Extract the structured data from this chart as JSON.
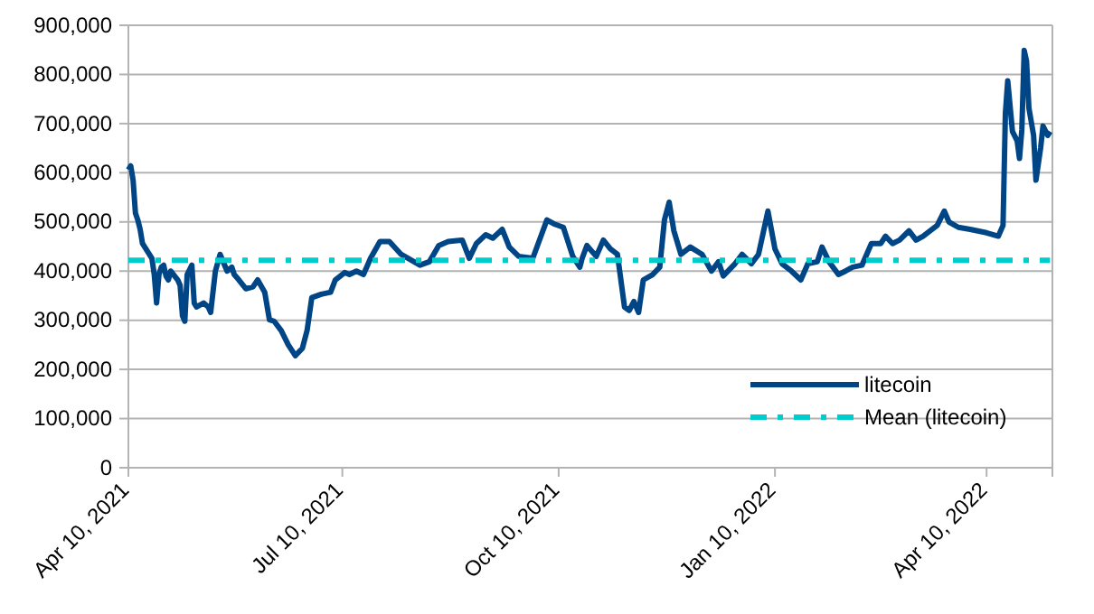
{
  "chart_data": {
    "type": "line",
    "xlim": [
      "2021-04-10",
      "2022-05-08"
    ],
    "ylim": [
      0,
      900000
    ],
    "yticks": [
      {
        "value": 0,
        "label": "0"
      },
      {
        "value": 100000,
        "label": "100,000"
      },
      {
        "value": 200000,
        "label": "200,000"
      },
      {
        "value": 300000,
        "label": "300,000"
      },
      {
        "value": 400000,
        "label": "400,000"
      },
      {
        "value": 500000,
        "label": "500,000"
      },
      {
        "value": 600000,
        "label": "600,000"
      },
      {
        "value": 700000,
        "label": "700,000"
      },
      {
        "value": 800000,
        "label": "800,000"
      },
      {
        "value": 900000,
        "label": "900,000"
      }
    ],
    "xticks": [
      {
        "value": "2021-04-10",
        "label": "Apr 10, 2021"
      },
      {
        "value": "2021-07-10",
        "label": "Jul 10, 2021"
      },
      {
        "value": "2021-10-10",
        "label": "Oct 10, 2021"
      },
      {
        "value": "2022-01-10",
        "label": "Jan 10, 2022"
      },
      {
        "value": "2022-04-10",
        "label": "Apr 10, 2022"
      }
    ],
    "grid": "y",
    "legend": "bottom right",
    "series": [
      {
        "name": "litecoin",
        "color": "#004586",
        "line_style": "solid",
        "x": [
          "2021-04-10",
          "2021-04-11",
          "2021-04-12",
          "2021-04-13",
          "2021-04-14",
          "2021-04-15",
          "2021-04-16",
          "2021-04-18",
          "2021-04-20",
          "2021-04-21",
          "2021-04-22",
          "2021-04-23",
          "2021-04-24",
          "2021-04-25",
          "2021-04-26",
          "2021-04-27",
          "2021-04-28",
          "2021-05-01",
          "2021-05-02",
          "2021-05-03",
          "2021-05-04",
          "2021-05-05",
          "2021-05-07",
          "2021-05-08",
          "2021-05-09",
          "2021-05-12",
          "2021-05-14",
          "2021-05-15",
          "2021-05-17",
          "2021-05-19",
          "2021-05-22",
          "2021-05-24",
          "2021-05-25",
          "2021-05-27",
          "2021-05-30",
          "2021-06-02",
          "2021-06-04",
          "2021-06-07",
          "2021-06-09",
          "2021-06-11",
          "2021-06-14",
          "2021-06-17",
          "2021-06-20",
          "2021-06-23",
          "2021-06-25",
          "2021-06-27",
          "2021-07-01",
          "2021-07-05",
          "2021-07-07",
          "2021-07-11",
          "2021-07-13",
          "2021-07-16",
          "2021-07-19",
          "2021-07-22",
          "2021-07-26",
          "2021-07-30",
          "2021-08-04",
          "2021-08-07",
          "2021-08-12",
          "2021-08-16",
          "2021-08-20",
          "2021-08-24",
          "2021-08-30",
          "2021-09-02",
          "2021-09-05",
          "2021-09-09",
          "2021-09-12",
          "2021-09-16",
          "2021-09-19",
          "2021-09-23",
          "2021-09-29",
          "2021-10-05",
          "2021-10-08",
          "2021-10-12",
          "2021-10-16",
          "2021-10-19",
          "2021-10-20",
          "2021-10-22",
          "2021-10-26",
          "2021-10-29",
          "2021-11-01",
          "2021-11-04",
          "2021-11-07",
          "2021-11-09",
          "2021-11-11",
          "2021-11-13",
          "2021-11-15",
          "2021-11-19",
          "2021-11-22",
          "2021-11-24",
          "2021-11-26",
          "2021-11-28",
          "2021-12-01",
          "2021-12-05",
          "2021-12-10",
          "2021-12-14",
          "2021-12-17",
          "2021-12-19",
          "2021-12-24",
          "2021-12-27",
          "2021-12-31",
          "2022-01-03",
          "2022-01-07",
          "2022-01-10",
          "2022-01-13",
          "2022-01-17",
          "2022-01-21",
          "2022-01-24",
          "2022-01-28",
          "2022-01-30",
          "2022-02-02",
          "2022-02-06",
          "2022-02-09",
          "2022-02-12",
          "2022-02-16",
          "2022-02-20",
          "2022-02-24",
          "2022-02-26",
          "2022-03-01",
          "2022-03-04",
          "2022-03-08",
          "2022-03-11",
          "2022-03-14",
          "2022-03-20",
          "2022-03-23",
          "2022-03-25",
          "2022-03-29",
          "2022-04-03",
          "2022-04-10",
          "2022-04-15",
          "2022-04-17",
          "2022-04-18",
          "2022-04-19",
          "2022-04-21",
          "2022-04-23",
          "2022-04-24",
          "2022-04-25",
          "2022-04-26",
          "2022-04-27",
          "2022-04-28",
          "2022-04-30",
          "2022-05-01",
          "2022-05-03",
          "2022-05-04",
          "2022-05-06",
          "2022-05-07"
        ],
        "values": [
          606000,
          614000,
          585000,
          518000,
          504000,
          485000,
          456000,
          441000,
          426000,
          393000,
          335000,
          393000,
          408000,
          412000,
          390000,
          382000,
          400000,
          382000,
          371000,
          309000,
          298000,
          393000,
          412000,
          335000,
          327000,
          335000,
          327000,
          316000,
          400000,
          434000,
          400000,
          408000,
          393000,
          382000,
          364000,
          368000,
          382000,
          357000,
          301000,
          298000,
          279000,
          250000,
          228000,
          243000,
          279000,
          346000,
          353000,
          357000,
          382000,
          397000,
          393000,
          400000,
          393000,
          426000,
          460000,
          460000,
          434000,
          426000,
          412000,
          419000,
          452000,
          460000,
          463000,
          426000,
          456000,
          474000,
          467000,
          485000,
          449000,
          430000,
          426000,
          504000,
          496000,
          489000,
          430000,
          408000,
          426000,
          452000,
          430000,
          463000,
          445000,
          434000,
          327000,
          320000,
          338000,
          316000,
          382000,
          393000,
          408000,
          504000,
          540000,
          482000,
          434000,
          449000,
          434000,
          400000,
          419000,
          390000,
          415000,
          434000,
          415000,
          434000,
          522000,
          445000,
          415000,
          400000,
          382000,
          415000,
          419000,
          449000,
          419000,
          393000,
          400000,
          408000,
          412000,
          456000,
          456000,
          471000,
          456000,
          463000,
          482000,
          463000,
          471000,
          493000,
          522000,
          500000,
          489000,
          485000,
          478000,
          471000,
          493000,
          721000,
          787000,
          684000,
          665000,
          629000,
          688000,
          849000,
          827000,
          732000,
          676000,
          585000,
          651000,
          695000,
          676000,
          684000
        ]
      },
      {
        "name": "Mean (litecoin)",
        "color": "#00cccc",
        "line_style": "dashed",
        "x": [
          "2021-04-10",
          "2022-05-07"
        ],
        "values": [
          422000,
          422000
        ]
      }
    ]
  }
}
